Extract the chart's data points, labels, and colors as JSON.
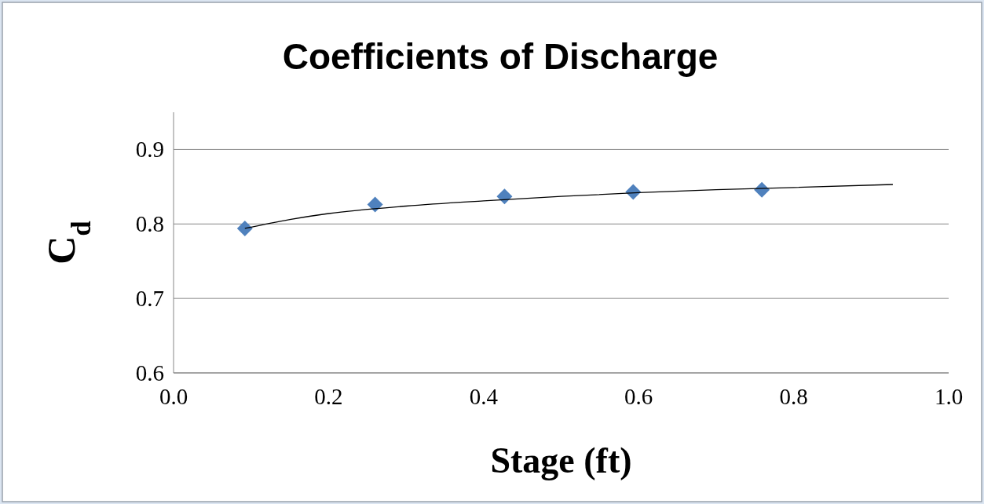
{
  "chart_data": {
    "type": "scatter",
    "title": "Coefficients of Discharge",
    "xlabel": "Stage (ft)",
    "ylabel": "C$_{d}$",
    "xlim": [
      0,
      1
    ],
    "xticks": [
      {
        "value": 0,
        "label": "0.0"
      },
      0.2,
      0.4,
      0.6,
      0.8,
      {
        "value": 1,
        "label": "1.0"
      }
    ],
    "ylim": [
      0.6,
      0.95
    ],
    "yticks": [
      0.6,
      0.7,
      0.8,
      0.9
    ],
    "grid": "y",
    "marker": "diamond",
    "series": [
      {
        "color": "#4f81bd",
        "x": [
          0.092,
          0.26,
          0.427,
          0.593,
          0.759
        ],
        "values": [
          0.794,
          0.826,
          0.837,
          0.843,
          0.846
        ]
      },
      {
        "type": "line",
        "color": "#000000",
        "marker": "none",
        "line_style": "solid",
        "x": [
          0.092,
          0.15,
          0.2,
          0.3,
          0.4,
          0.5,
          0.6,
          0.7,
          0.8,
          0.928
        ],
        "values": [
          0.794,
          0.806,
          0.814,
          0.824,
          0.831,
          0.837,
          0.842,
          0.846,
          0.849,
          0.853
        ]
      }
    ]
  }
}
